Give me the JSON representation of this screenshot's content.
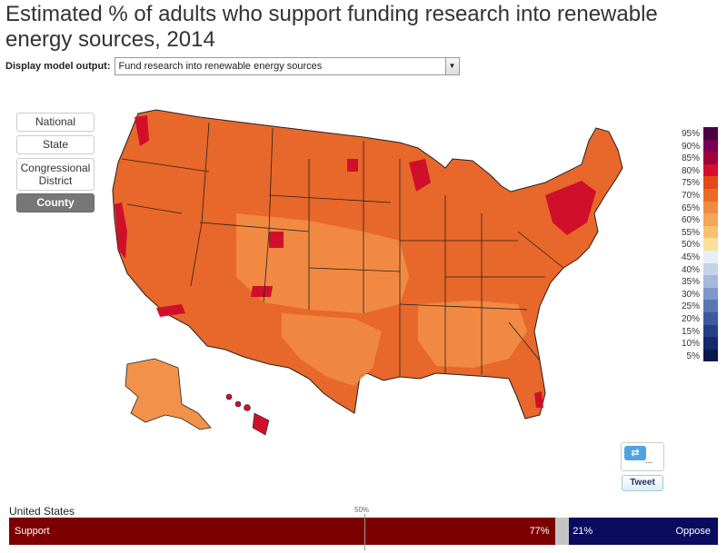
{
  "title": "Estimated % of adults who support funding research into renewable energy sources, 2014",
  "model_output": {
    "label": "Display model output:",
    "selected": "Fund research into renewable energy sources"
  },
  "geography_buttons": [
    {
      "label": "National",
      "active": false
    },
    {
      "label": "State",
      "active": false
    },
    {
      "label": "Congressional District",
      "active": false
    },
    {
      "label": "County",
      "active": true
    }
  ],
  "legend": {
    "labels": [
      "95%",
      "90%",
      "85%",
      "80%",
      "75%",
      "70%",
      "65%",
      "60%",
      "55%",
      "50%",
      "45%",
      "40%",
      "35%",
      "30%",
      "25%",
      "20%",
      "15%",
      "10%",
      "5%"
    ],
    "colors": [
      "#4a0042",
      "#7a0055",
      "#a0003c",
      "#d4102c",
      "#e24a1c",
      "#ec6a24",
      "#f08a40",
      "#f5a55a",
      "#f8c070",
      "#fbe09a",
      "#e6eef8",
      "#c6d4ea",
      "#a6b8dc",
      "#8098c8",
      "#5a76b0",
      "#3c5a9c",
      "#233f86",
      "#142a6c",
      "#0a1a4e"
    ]
  },
  "map": {
    "fill_main": "#e8672a",
    "fill_light": "#f2924a",
    "fill_high": "#d0102a",
    "stroke": "#222222"
  },
  "social": {
    "icon": "retweet-icon",
    "tweet_label": "Tweet",
    "dots": "..."
  },
  "national": {
    "region": "United States",
    "midpoint_label": "50%",
    "support_label": "Support",
    "support_pct": 77,
    "support_text": "77%",
    "oppose_pct": 21,
    "oppose_text": "21%",
    "oppose_label": "Oppose",
    "colors": {
      "support": "#7d0000",
      "neutral": "#c4c4c4",
      "oppose": "#0b0b60"
    }
  }
}
